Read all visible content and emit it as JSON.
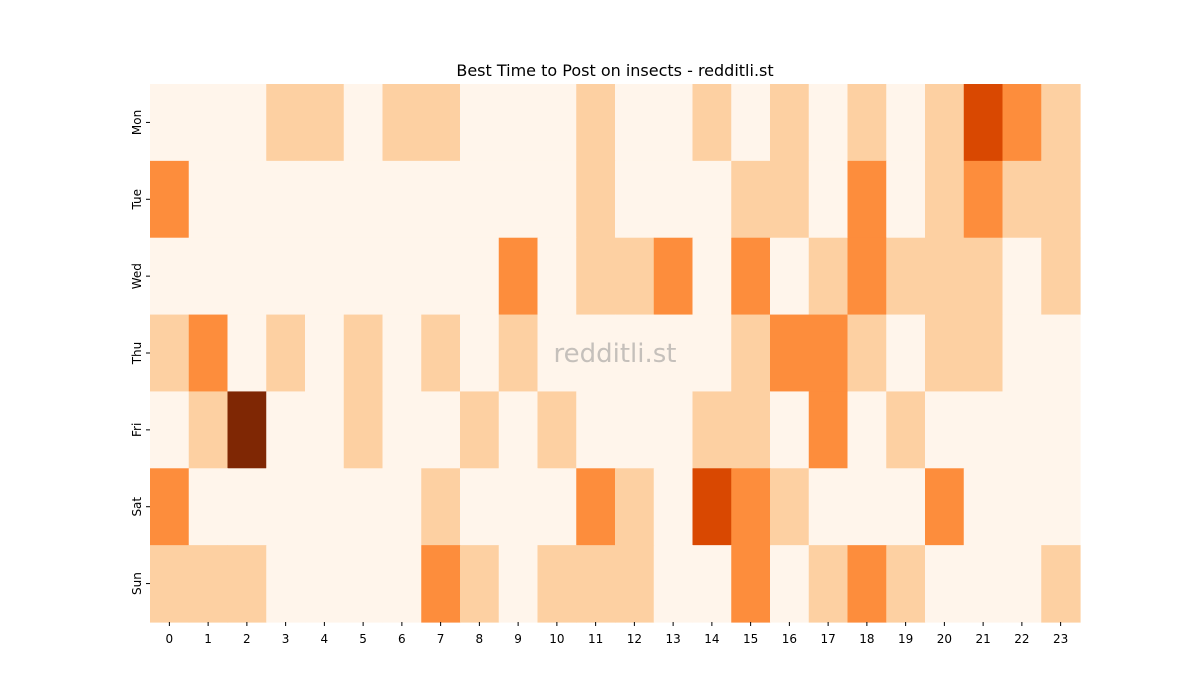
{
  "chart_data": {
    "type": "heatmap",
    "title": "Best Time to Post on insects - redditli.st",
    "watermark": "redditli.st",
    "xlabel": "",
    "ylabel": "",
    "x": [
      "0",
      "1",
      "2",
      "3",
      "4",
      "5",
      "6",
      "7",
      "8",
      "9",
      "10",
      "11",
      "12",
      "13",
      "14",
      "15",
      "16",
      "17",
      "18",
      "19",
      "20",
      "21",
      "22",
      "23"
    ],
    "y": [
      "Mon",
      "Tue",
      "Wed",
      "Thu",
      "Fri",
      "Sat",
      "Sun"
    ],
    "colormap": "Oranges",
    "vmin": 0,
    "vmax": 4,
    "colorbar": false,
    "values": [
      [
        0,
        0,
        0,
        1,
        1,
        0,
        1,
        1,
        0,
        0,
        0,
        1,
        0,
        0,
        1,
        0,
        1,
        0,
        1,
        0,
        1,
        3,
        2,
        1
      ],
      [
        2,
        0,
        0,
        0,
        0,
        0,
        0,
        0,
        0,
        0,
        0,
        1,
        0,
        0,
        0,
        1,
        1,
        0,
        2,
        0,
        1,
        2,
        1,
        1
      ],
      [
        0,
        0,
        0,
        0,
        0,
        0,
        0,
        0,
        0,
        2,
        0,
        1,
        1,
        2,
        0,
        2,
        0,
        1,
        2,
        1,
        1,
        1,
        0,
        1
      ],
      [
        1,
        2,
        0,
        1,
        0,
        1,
        0,
        1,
        0,
        1,
        0,
        0,
        0,
        0,
        0,
        1,
        2,
        2,
        1,
        0,
        1,
        1,
        0,
        0
      ],
      [
        0,
        1,
        4,
        0,
        0,
        1,
        0,
        0,
        1,
        0,
        1,
        0,
        0,
        0,
        1,
        1,
        0,
        2,
        0,
        1,
        0,
        0,
        0,
        0
      ],
      [
        2,
        0,
        0,
        0,
        0,
        0,
        0,
        1,
        0,
        0,
        0,
        2,
        1,
        0,
        3,
        2,
        1,
        0,
        0,
        0,
        2,
        0,
        0,
        0
      ],
      [
        1,
        1,
        1,
        0,
        0,
        0,
        0,
        2,
        1,
        0,
        1,
        1,
        1,
        0,
        0,
        2,
        0,
        1,
        2,
        1,
        0,
        0,
        0,
        1
      ]
    ],
    "level_colors": [
      "#fff5eb",
      "#fdd0a2",
      "#fd8d3c",
      "#d94801",
      "#7f2704"
    ]
  }
}
